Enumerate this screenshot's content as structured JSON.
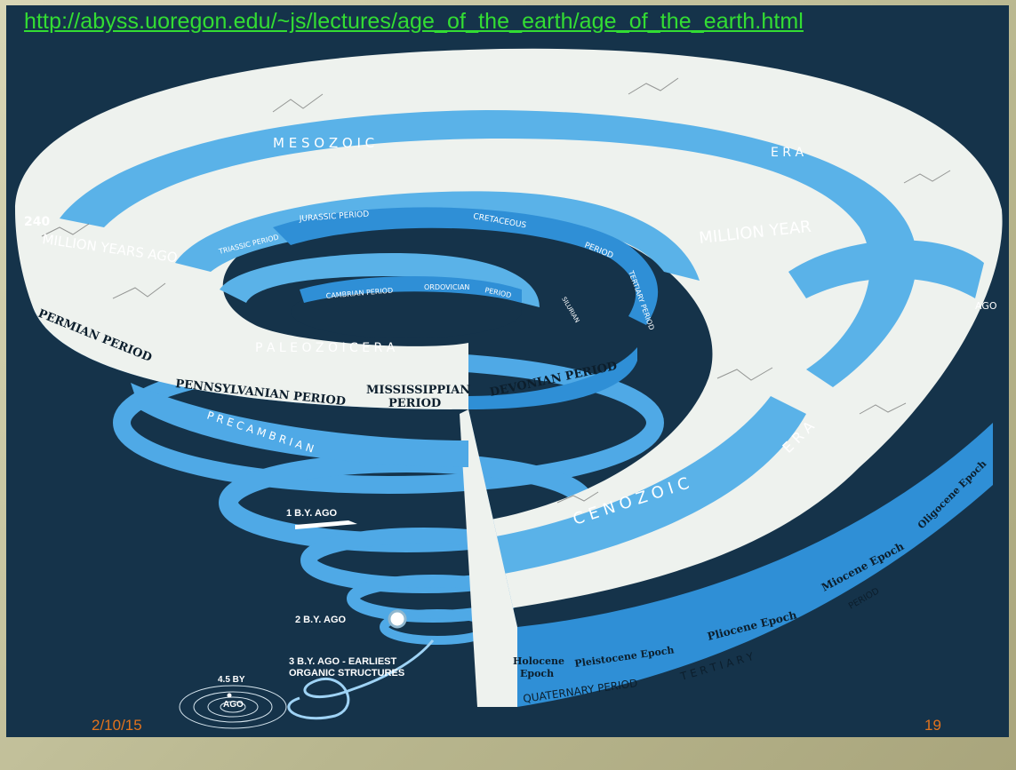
{
  "slide": {
    "url": "http://abyss.uoregon.edu/~js/lectures/age_of_the_earth/age_of_the_earth.html",
    "date": "2/10/15",
    "page_number": "19"
  },
  "diagram": {
    "eras": {
      "mesozoic": "M E S O Z O I C",
      "era_word": "E R A",
      "paleozoic": "P A L E O Z O I C   E R A",
      "cenozoic": "C E N O Z O I C",
      "cenozoic_era": "E R A",
      "precambrian": "P R E C A M B R I A N"
    },
    "years_ago_left": "240",
    "years_ago_left_text": "MILLION YEARS AGO",
    "years_ago_right_text": "MILLION YEAR",
    "ago_right": "AGO",
    "periods": {
      "permian": "PERMIAN PERIOD",
      "pennsylvanian": "PENNSYLVANIAN PERIOD",
      "mississippian_1": "MISSISSIPPIAN",
      "mississippian_2": "PERIOD",
      "devonian": "DEVONIAN PERIOD",
      "triassic": "TRIASSIC PERIOD",
      "jurassic": "JURASSIC   PERIOD",
      "cretaceous": "CRETACEOUS",
      "cretaceous_period": "PERIOD",
      "tertiary_period": "TERTIARY PERIOD",
      "cambrian": "CAMBRIAN PERIOD",
      "ordovician": "ORDOVICIAN",
      "ordovician_period": "PERIOD",
      "silurian": "SILURIAN",
      "tertiary": "T E R T I A R Y",
      "quaternary": "QUATERNARY   PERIOD",
      "oligocene": "Oligocene Epoch",
      "period_tag": "PERIOD"
    },
    "epochs": {
      "holocene_1": "Holocene",
      "holocene_2": "Epoch",
      "pleistocene": "Pleistocene Epoch",
      "pliocene": "Pliocene Epoch",
      "miocene": "Miocene Epoch"
    },
    "milestones": {
      "by1": "1 B.Y. AGO",
      "by2": "2 B.Y. AGO",
      "by3_1": "3 B.Y. AGO - EARLIEST",
      "by3_2": "ORGANIC STRUCTURES",
      "by45": "4.5 BY",
      "by45_ago": "AGO"
    },
    "colors": {
      "background": "#15334a",
      "sea": "#5ab2e8",
      "band": "#2f8fd6",
      "land": "#f2f2ee",
      "link": "#33dd33",
      "footer": "#e2731d"
    }
  }
}
